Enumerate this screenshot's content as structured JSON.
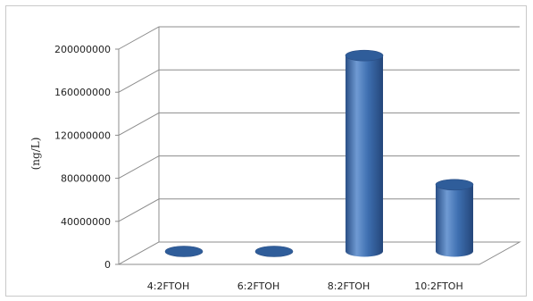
{
  "chart_data": {
    "type": "bar",
    "style": "3d-cylinder",
    "title": "",
    "xlabel": "",
    "ylabel": "(ng/L)",
    "categories": [
      "4:2FTOH",
      "6:2FTOH",
      "8:2FTOH",
      "10:2FTOH"
    ],
    "values": [
      0,
      0,
      182000000,
      62000000
    ],
    "ylim": [
      0,
      200000000
    ],
    "yticks": [
      "0",
      "40000000",
      "80000000",
      "120000000",
      "160000000",
      "200000000"
    ],
    "grid": true,
    "legend": "none",
    "colors": {
      "bar": "#3e6fb0",
      "bar_light": "#6f9ad3",
      "bar_dark": "#2a4f86",
      "top": "#2f5d9a",
      "grid": "#8c8c8c"
    }
  }
}
